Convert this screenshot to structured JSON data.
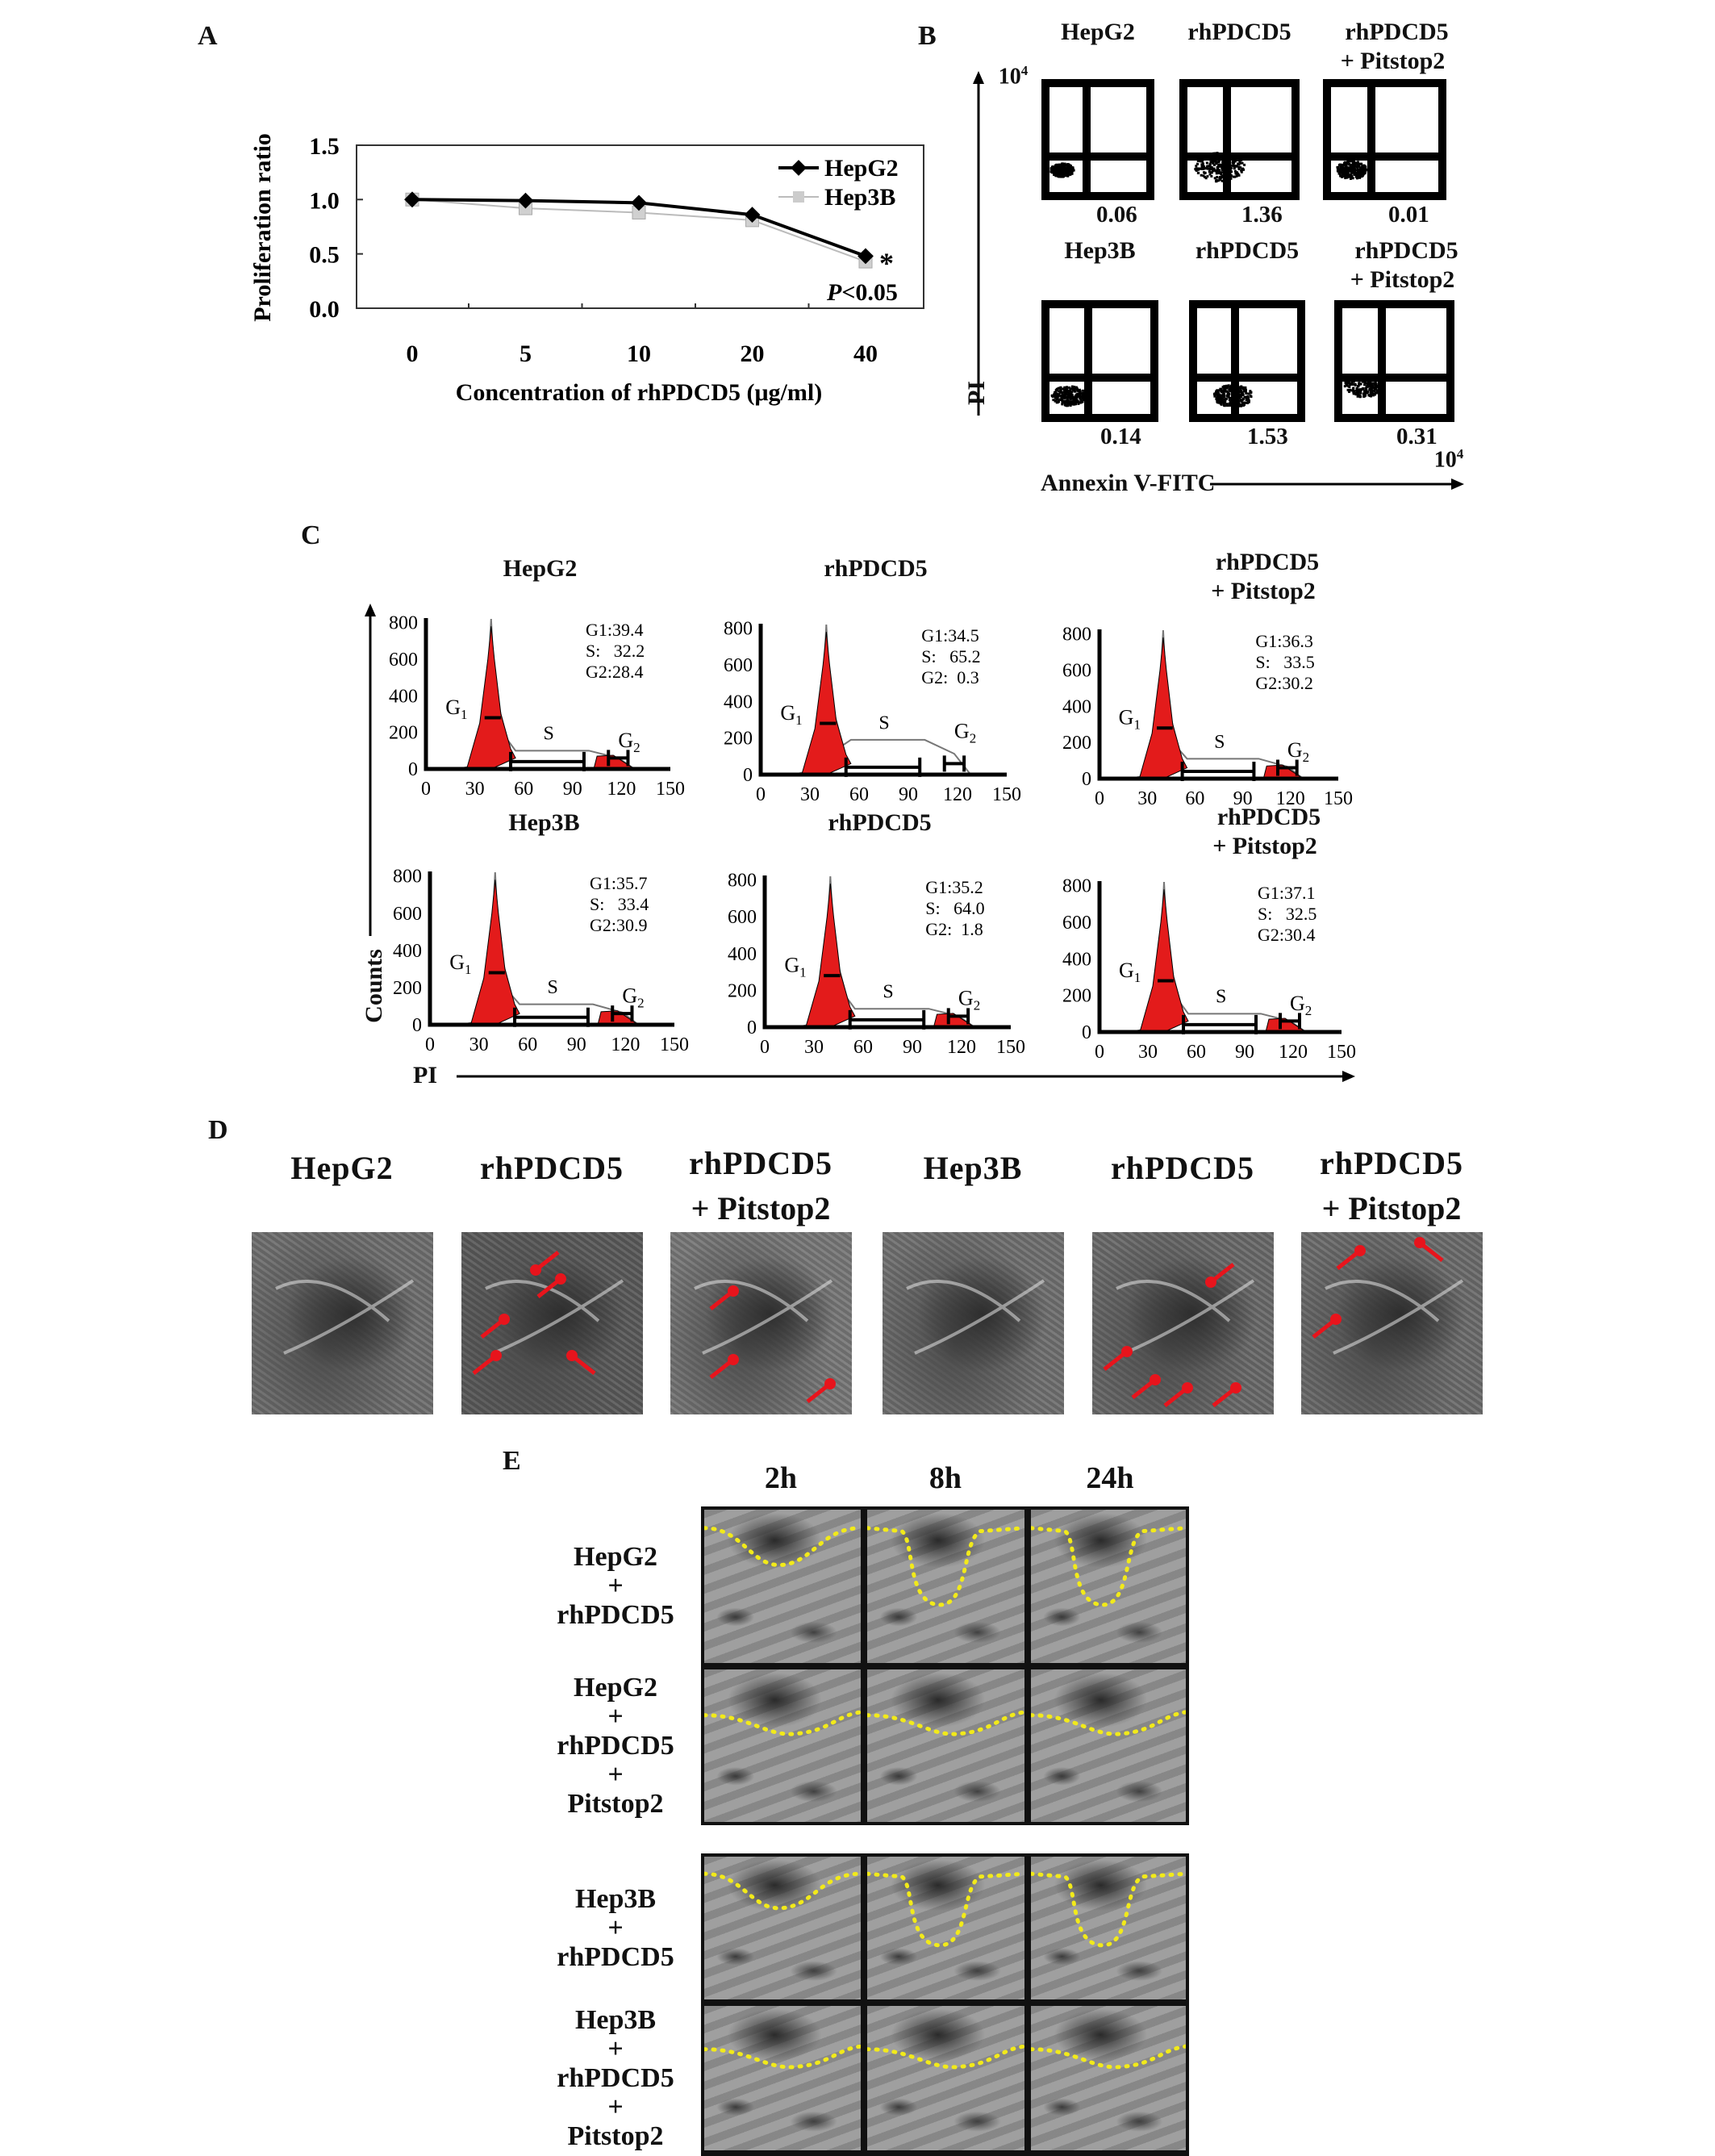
{
  "panel_labels": {
    "a": "A",
    "b": "B",
    "c": "C",
    "d": "D",
    "e": "E"
  },
  "chart_data": {
    "type": "line",
    "title": "",
    "xlabel": "Concentration of rhPDCD5 (μg/ml)",
    "ylabel": "Proliferation ratio",
    "categories": [
      "0",
      "5",
      "10",
      "20",
      "40"
    ],
    "yticks": [
      "0.0",
      "0.5",
      "1.0",
      "1.5"
    ],
    "ylim": [
      0,
      1.5
    ],
    "legend_position": "top-right",
    "series": [
      {
        "name": "HepG2",
        "values": [
          1.0,
          0.99,
          0.97,
          0.86,
          0.48
        ],
        "color": "#000000",
        "marker": "diamond"
      },
      {
        "name": "Hep3B",
        "values": [
          1.0,
          0.92,
          0.88,
          0.81,
          0.43
        ],
        "color": "#bbbbbb",
        "marker": "square"
      }
    ],
    "annotation_star": "*",
    "annotation_p": "P",
    "annotation_p_rest": "<0.05"
  },
  "panel_b": {
    "y_axis_label": "PI",
    "x_axis_label": "Annexin V-FITC",
    "axis_max": "10",
    "axis_max_exp": "4",
    "plots": [
      {
        "title": "HepG2",
        "subtitle": "",
        "value": "0.06"
      },
      {
        "title": "rhPDCD5",
        "subtitle": "",
        "value": "1.36"
      },
      {
        "title": "rhPDCD5",
        "subtitle": "+ Pitstop2",
        "value": "0.01"
      },
      {
        "title": "Hep3B",
        "subtitle": "",
        "value": "0.14"
      },
      {
        "title": "rhPDCD5",
        "subtitle": "",
        "value": "1.53"
      },
      {
        "title": "rhPDCD5",
        "subtitle": "+ Pitstop2",
        "value": "0.31"
      }
    ]
  },
  "panel_c": {
    "y_axis_label": "Counts",
    "x_axis_label": "PI",
    "yticks": [
      "0",
      "200",
      "400",
      "600",
      "800"
    ],
    "xticks": [
      "0",
      "30",
      "60",
      "90",
      "120",
      "150"
    ],
    "phase": {
      "g": "G",
      "one": "1",
      "two": "2",
      "s": "S"
    },
    "plots": [
      {
        "title": "HepG2",
        "subtitle": "",
        "g1": "G1:39.4",
        "s": "S:   32.2",
        "g2": "G2:28.4",
        "s_height": 100
      },
      {
        "title": "rhPDCD5",
        "subtitle": "",
        "g1": "G1:34.5",
        "s": "S:   65.2",
        "g2": "G2:  0.3",
        "s_height": 190
      },
      {
        "title": "rhPDCD5",
        "subtitle": "+ Pitstop2",
        "g1": "G1:36.3",
        "s": "S:   33.5",
        "g2": "G2:30.2",
        "s_height": 110
      },
      {
        "title": "Hep3B",
        "subtitle": "",
        "g1": "G1:35.7",
        "s": "S:   33.4",
        "g2": "G2:30.9",
        "s_height": 110
      },
      {
        "title": "rhPDCD5",
        "subtitle": "",
        "g1": "G1:35.2",
        "s": "S:   64.0",
        "g2": "G2:  1.8",
        "s_height": 100
      },
      {
        "title": "rhPDCD5",
        "subtitle": "+ Pitstop2",
        "g1": "G1:37.1",
        "s": "S:   32.5",
        "g2": "G2:30.4",
        "s_height": 100
      }
    ]
  },
  "panel_d": {
    "images": [
      {
        "title": "HepG2",
        "subtitle": ""
      },
      {
        "title": "rhPDCD5",
        "subtitle": ""
      },
      {
        "title": "rhPDCD5",
        "subtitle": "+ Pitstop2"
      },
      {
        "title": "Hep3B",
        "subtitle": ""
      },
      {
        "title": "rhPDCD5",
        "subtitle": ""
      },
      {
        "title": "rhPDCD5",
        "subtitle": "+ Pitstop2"
      }
    ],
    "arrow_color": "#e8141c"
  },
  "panel_e": {
    "columns": [
      "2h",
      "8h",
      "24h"
    ],
    "rows": [
      {
        "lines": [
          "HepG2",
          "+",
          "rhPDCD5"
        ]
      },
      {
        "lines": [
          "HepG2",
          "+",
          "rhPDCD5",
          "+",
          "Pitstop2"
        ]
      },
      {
        "lines": [
          "Hep3B",
          "+",
          "rhPDCD5"
        ]
      },
      {
        "lines": [
          "Hep3B",
          "+",
          "rhPDCD5",
          "+",
          "Pitstop2"
        ]
      }
    ],
    "outline_color": "#f2ea1a"
  },
  "colors": {
    "histogram_fill": "#e31b1b"
  }
}
